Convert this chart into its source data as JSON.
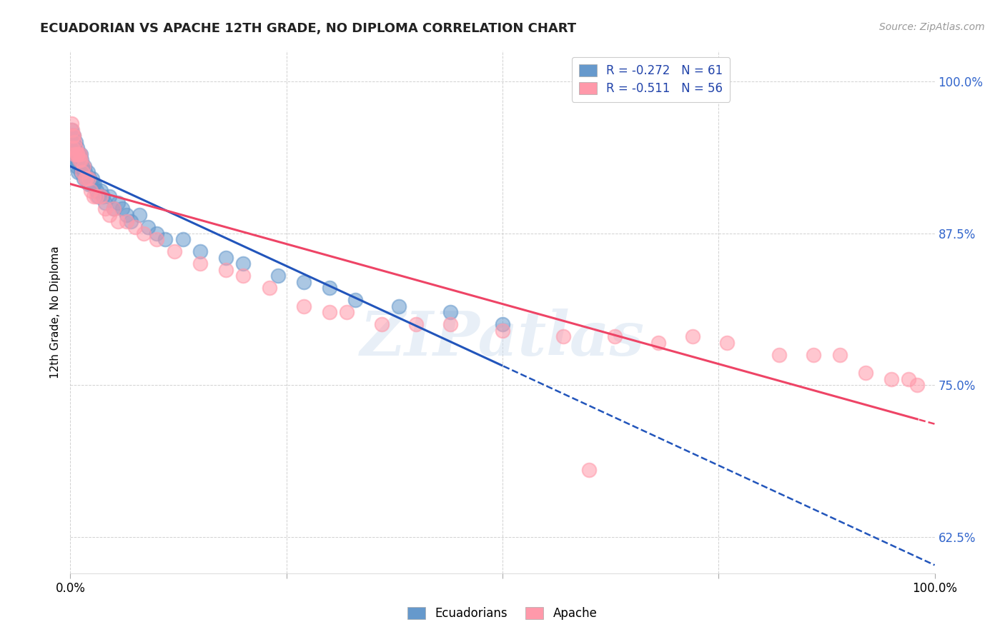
{
  "title": "ECUADORIAN VS APACHE 12TH GRADE, NO DIPLOMA CORRELATION CHART",
  "source_text": "Source: ZipAtlas.com",
  "ylabel": "12th Grade, No Diploma",
  "blue_color": "#6699CC",
  "pink_color": "#FF99AA",
  "blue_line_color": "#2255BB",
  "pink_line_color": "#EE4466",
  "blue_R": -0.272,
  "blue_N": 61,
  "pink_R": -0.511,
  "pink_N": 56,
  "xlim": [
    0.0,
    1.0
  ],
  "ylim": [
    0.595,
    1.025
  ],
  "x_ticks": [
    0.0,
    0.25,
    0.5,
    0.75,
    1.0
  ],
  "x_tick_labels": [
    "0.0%",
    "",
    "",
    "",
    "100.0%"
  ],
  "y_ticks": [
    0.625,
    0.75,
    0.875,
    1.0
  ],
  "y_tick_labels": [
    "62.5%",
    "75.0%",
    "87.5%",
    "100.0%"
  ],
  "blue_scatter_x": [
    0.001,
    0.002,
    0.002,
    0.003,
    0.003,
    0.004,
    0.004,
    0.005,
    0.005,
    0.006,
    0.006,
    0.007,
    0.007,
    0.008,
    0.008,
    0.009,
    0.009,
    0.01,
    0.01,
    0.011,
    0.012,
    0.012,
    0.013,
    0.014,
    0.015,
    0.016,
    0.017,
    0.018,
    0.02,
    0.021,
    0.022,
    0.024,
    0.025,
    0.026,
    0.028,
    0.03,
    0.032,
    0.035,
    0.038,
    0.04,
    0.045,
    0.05,
    0.055,
    0.06,
    0.065,
    0.07,
    0.08,
    0.09,
    0.1,
    0.11,
    0.13,
    0.15,
    0.18,
    0.2,
    0.24,
    0.27,
    0.3,
    0.33,
    0.38,
    0.44,
    0.5
  ],
  "blue_scatter_y": [
    0.96,
    0.955,
    0.94,
    0.95,
    0.945,
    0.955,
    0.935,
    0.945,
    0.94,
    0.95,
    0.935,
    0.94,
    0.93,
    0.945,
    0.935,
    0.94,
    0.925,
    0.94,
    0.935,
    0.93,
    0.94,
    0.925,
    0.935,
    0.93,
    0.92,
    0.93,
    0.925,
    0.92,
    0.925,
    0.915,
    0.92,
    0.915,
    0.92,
    0.915,
    0.915,
    0.91,
    0.905,
    0.91,
    0.905,
    0.9,
    0.905,
    0.895,
    0.9,
    0.895,
    0.89,
    0.885,
    0.89,
    0.88,
    0.875,
    0.87,
    0.87,
    0.86,
    0.855,
    0.85,
    0.84,
    0.835,
    0.83,
    0.82,
    0.815,
    0.81,
    0.8
  ],
  "pink_scatter_x": [
    0.001,
    0.002,
    0.002,
    0.003,
    0.004,
    0.005,
    0.005,
    0.006,
    0.007,
    0.008,
    0.009,
    0.01,
    0.011,
    0.012,
    0.014,
    0.015,
    0.017,
    0.019,
    0.021,
    0.024,
    0.027,
    0.03,
    0.035,
    0.04,
    0.045,
    0.05,
    0.055,
    0.065,
    0.075,
    0.085,
    0.1,
    0.12,
    0.15,
    0.18,
    0.2,
    0.23,
    0.27,
    0.32,
    0.4,
    0.5,
    0.57,
    0.63,
    0.68,
    0.72,
    0.76,
    0.82,
    0.86,
    0.89,
    0.92,
    0.95,
    0.97,
    0.98,
    0.3,
    0.36,
    0.44,
    0.6
  ],
  "pink_scatter_y": [
    0.965,
    0.96,
    0.945,
    0.955,
    0.955,
    0.95,
    0.94,
    0.945,
    0.94,
    0.94,
    0.94,
    0.935,
    0.94,
    0.935,
    0.925,
    0.93,
    0.92,
    0.92,
    0.92,
    0.91,
    0.905,
    0.905,
    0.905,
    0.895,
    0.89,
    0.895,
    0.885,
    0.885,
    0.88,
    0.875,
    0.87,
    0.86,
    0.85,
    0.845,
    0.84,
    0.83,
    0.815,
    0.81,
    0.8,
    0.795,
    0.79,
    0.79,
    0.785,
    0.79,
    0.785,
    0.775,
    0.775,
    0.775,
    0.76,
    0.755,
    0.755,
    0.75,
    0.81,
    0.8,
    0.8,
    0.68
  ]
}
